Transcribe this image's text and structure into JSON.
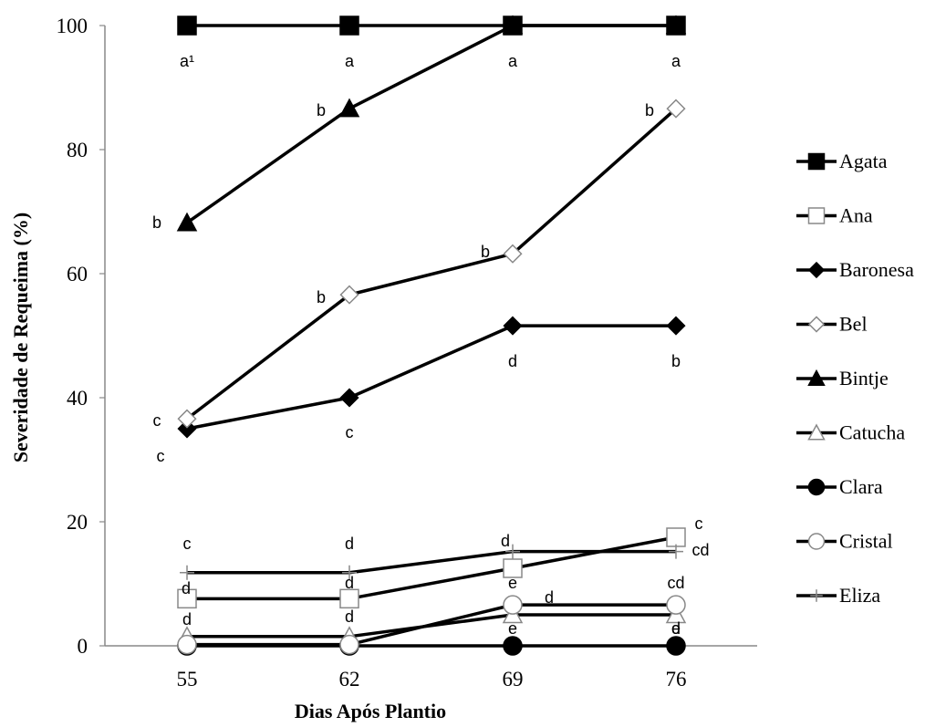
{
  "chart_data": {
    "type": "line",
    "xlabel": "Dias Após Plantio",
    "ylabel": "Severidade de Requeima (%)",
    "x": [
      55,
      62,
      69,
      76
    ],
    "ylim": [
      0,
      100
    ],
    "yticks": [
      0,
      20,
      40,
      60,
      80,
      100
    ],
    "grid": false,
    "legend_position": "right",
    "series": [
      {
        "name": "Agata",
        "values": [
          100,
          100,
          100,
          100
        ],
        "marker": "square",
        "fill": "#000000"
      },
      {
        "name": "Ana",
        "values": [
          7.6,
          7.6,
          12.5,
          17.5
        ],
        "marker": "square",
        "fill": "#ffffff"
      },
      {
        "name": "Baronesa",
        "values": [
          35,
          40,
          51.6,
          51.6
        ],
        "marker": "diamond",
        "fill": "#000000"
      },
      {
        "name": "Bel",
        "values": [
          36.6,
          56.6,
          63.2,
          86.6
        ],
        "marker": "diamond",
        "fill": "#ffffff"
      },
      {
        "name": "Bintje",
        "values": [
          68.2,
          86.6,
          100,
          100
        ],
        "marker": "triangle",
        "fill": "#000000"
      },
      {
        "name": "Catucha",
        "values": [
          1.5,
          1.5,
          5,
          5
        ],
        "marker": "triangle",
        "fill": "#ffffff"
      },
      {
        "name": "Clara",
        "values": [
          0,
          0,
          0,
          0
        ],
        "marker": "circle",
        "fill": "#000000"
      },
      {
        "name": "Cristal",
        "values": [
          0.2,
          0.2,
          6.6,
          6.6
        ],
        "marker": "circle",
        "fill": "#ffffff"
      },
      {
        "name": "Eliza",
        "values": [
          11.8,
          11.8,
          15.2,
          15.2
        ],
        "marker": "plus",
        "fill": "#888888"
      }
    ],
    "annotations": [
      "a¹",
      "a",
      "a",
      "a",
      "b",
      "b",
      "b",
      "c",
      "c",
      "b",
      "b",
      "c",
      "d",
      "b",
      "c",
      "d",
      "d",
      "c",
      "d",
      "d",
      "d",
      "cd",
      "d",
      "d",
      "e",
      "cd",
      "e",
      "d",
      "e"
    ]
  }
}
